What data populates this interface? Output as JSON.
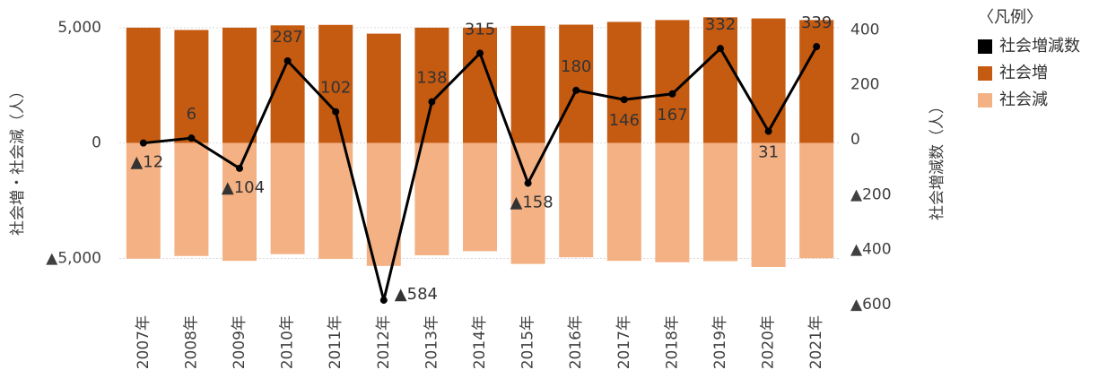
{
  "chart_data": {
    "type": "bar_line",
    "y_label": "社会増・社会減（人）",
    "y2_label": "社会増減数（人）",
    "legend_title": "〈凡例〉",
    "categories": [
      "2007年",
      "2008年",
      "2009年",
      "2010年",
      "2011年",
      "2012年",
      "2013年",
      "2014年",
      "2015年",
      "2016年",
      "2017年",
      "2018年",
      "2019年",
      "2020年",
      "2021年"
    ],
    "series": [
      {
        "name": "社会増減数",
        "type": "line",
        "axis": "y2",
        "color": "#000000",
        "values": [
          -12,
          6,
          -104,
          287,
          102,
          -584,
          138,
          315,
          -158,
          180,
          146,
          167,
          332,
          31,
          339
        ],
        "value_labels": [
          "▲12",
          "6",
          "▲104",
          "287",
          "102",
          "▲584",
          "138",
          "315",
          "▲158",
          "180",
          "146",
          "167",
          "332",
          "31",
          "339"
        ]
      },
      {
        "name": "社会増",
        "type": "bar",
        "color": "#C55A11",
        "values": [
          5000,
          4900,
          5000,
          5100,
          5120,
          4740,
          5000,
          5000,
          5080,
          5130,
          5250,
          5330,
          5450,
          5400,
          5330
        ]
      },
      {
        "name": "社会減",
        "type": "bar",
        "color": "#F4B183",
        "values": [
          -5012,
          -4894,
          -5104,
          -4813,
          -5018,
          -5324,
          -4862,
          -4685,
          -5238,
          -4950,
          -5104,
          -5163,
          -5118,
          -5369,
          -4991
        ]
      }
    ],
    "ylim": [
      -7000,
      5500
    ],
    "yticks": [
      {
        "value": 5000,
        "label": "5,000"
      },
      0,
      {
        "value": -5000,
        "label": "▲5,000"
      }
    ],
    "y2lim": [
      -600,
      450
    ],
    "y2ticks": [
      400,
      200,
      0,
      {
        "value": -200,
        "label": "▲200"
      },
      {
        "value": -400,
        "label": "▲400"
      },
      {
        "value": -600,
        "label": "▲600"
      }
    ],
    "grid": true
  }
}
